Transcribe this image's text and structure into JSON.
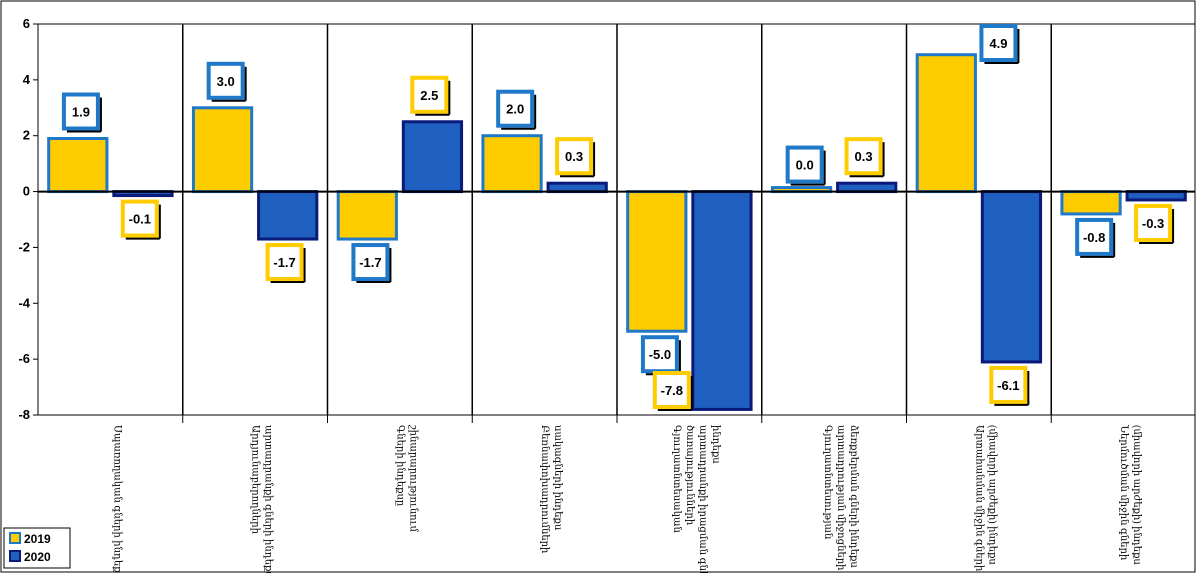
{
  "chart_data": {
    "type": "bar",
    "categories": [
      "Սպառողական գների ինդեքս",
      "Արդյունաբերողների արտադրանքի գների ինդեքս",
      "Գների ինդեքսը շինարարությունում",
      "Բեռնափոխադրումների սակագների ինդեքս",
      "Գյուղատնտեսական ծառայությունների արտադրանքի իրացման գների ինդեքս",
      "Գյուղատնտեսության արտադրության միջոցների ձեռքբերման գների ինդեքս",
      "Արտահանման միջին գների (միավորի արժեքի) ինդեքս",
      "Ներմուծման միջին գների (միավորի արժեքի) ինդեքս"
    ],
    "series": [
      {
        "name": "2019",
        "values": [
          1.9,
          3.0,
          -1.7,
          2.0,
          -5.0,
          0.0,
          4.9,
          -0.8
        ]
      },
      {
        "name": "2020",
        "values": [
          -0.1,
          -1.7,
          2.5,
          0.3,
          -7.8,
          0.3,
          -6.1,
          -0.3
        ]
      }
    ],
    "data_labels": [
      {
        "text": "1.9",
        "border": "blue"
      },
      {
        "text": "-0.1",
        "border": "gold"
      },
      {
        "text": "3.0",
        "border": "blue"
      },
      {
        "text": "-1.7",
        "border": "gold"
      },
      {
        "text": "-1.7",
        "border": "blue"
      },
      {
        "text": "2.5",
        "border": "gold"
      },
      {
        "text": "2.0",
        "border": "blue"
      },
      {
        "text": "0.3",
        "border": "gold"
      },
      {
        "text": "-5.0",
        "border": "blue"
      },
      {
        "text": "-7.8",
        "border": "gold"
      },
      {
        "text": "0.0",
        "border": "blue"
      },
      {
        "text": "0.3",
        "border": "gold"
      },
      {
        "text": "4.9",
        "border": "blue"
      },
      {
        "text": "-6.1",
        "border": "gold"
      },
      {
        "text": "-0.8",
        "border": "blue"
      },
      {
        "text": "-0.3",
        "border": "gold"
      }
    ],
    "yticks": [
      "6",
      "4",
      "2",
      "0",
      "-2",
      "-4",
      "-6",
      "-8"
    ],
    "ylim": [
      -8,
      6
    ],
    "legend_position": "bottom-left",
    "vertical_separators": true,
    "colors": {
      "2019_fill": "#FFCC00",
      "2019_stroke": "#1F78C8",
      "2020_fill": "#1F5FBF",
      "2020_stroke": "#0A1A7A",
      "label_blue_border": "#1F78C8",
      "label_gold_border": "#FFCC00"
    }
  }
}
